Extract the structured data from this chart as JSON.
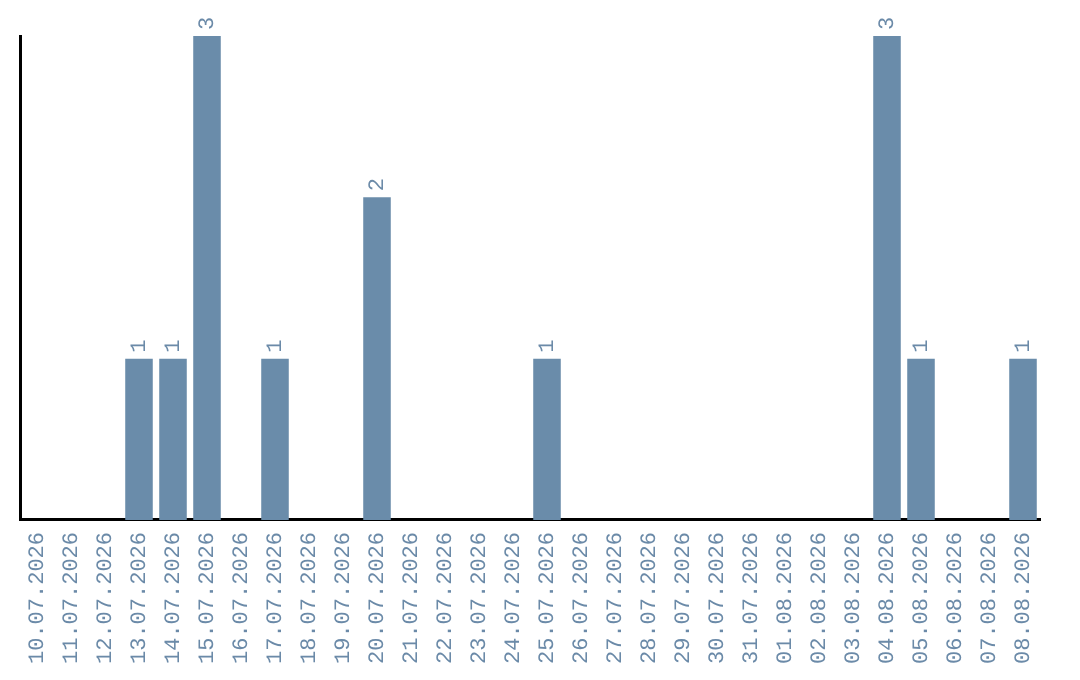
{
  "chart_data": {
    "type": "bar",
    "categories": [
      "10.07.2026",
      "11.07.2026",
      "12.07.2026",
      "13.07.2026",
      "14.07.2026",
      "15.07.2026",
      "16.07.2026",
      "17.07.2026",
      "18.07.2026",
      "19.07.2026",
      "20.07.2026",
      "21.07.2026",
      "22.07.2026",
      "23.07.2026",
      "24.07.2026",
      "25.07.2026",
      "26.07.2026",
      "27.07.2026",
      "28.07.2026",
      "29.07.2026",
      "30.07.2026",
      "31.07.2026",
      "01.08.2026",
      "02.08.2026",
      "03.08.2026",
      "04.08.2026",
      "05.08.2026",
      "06.08.2026",
      "07.08.2026",
      "08.08.2026"
    ],
    "values": [
      0,
      0,
      0,
      1,
      1,
      3,
      0,
      1,
      0,
      0,
      2,
      0,
      0,
      0,
      0,
      1,
      0,
      0,
      0,
      0,
      0,
      0,
      0,
      0,
      0,
      3,
      1,
      0,
      0,
      1
    ],
    "value_labels": [
      null,
      null,
      null,
      "1",
      "1",
      "3",
      null,
      "1",
      null,
      null,
      "2",
      null,
      null,
      null,
      null,
      "1",
      null,
      null,
      null,
      null,
      null,
      null,
      null,
      null,
      null,
      "3",
      "1",
      null,
      null,
      "1"
    ],
    "color": "#6a8caa",
    "grid": false,
    "legend": false,
    "tick_labels": "x"
  }
}
